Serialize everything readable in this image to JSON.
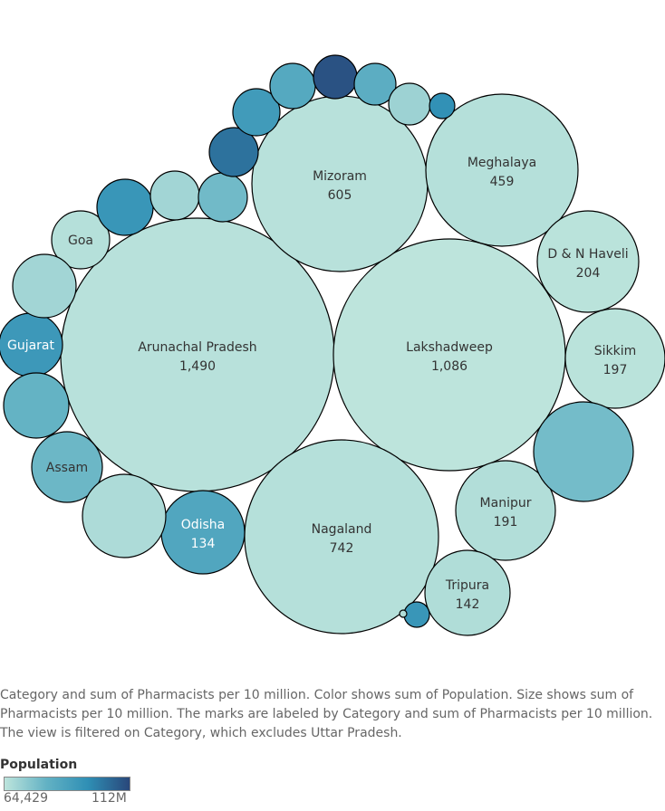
{
  "chart_data": {
    "type": "packed-bubble",
    "size_measure": "Pharmacists per 10 million",
    "color_measure": "Population",
    "color_range": {
      "min_label": "64,429",
      "max_label": "112M"
    },
    "color_stops": [
      "#bde4dc",
      "#63b2c4",
      "#2f8fb5",
      "#29477a"
    ],
    "bubbles": [
      {
        "category": "Arunachal Pradesh",
        "value": 1490,
        "value_label": "1,490",
        "population_norm": 0.02
      },
      {
        "category": "Lakshadweep",
        "value": 1086,
        "value_label": "1,086",
        "population_norm": 0.0
      },
      {
        "category": "Nagaland",
        "value": 742,
        "value_label": "742",
        "population_norm": 0.03
      },
      {
        "category": "Mizoram",
        "value": 605,
        "value_label": "605",
        "population_norm": 0.02
      },
      {
        "category": "Meghalaya",
        "value": 459,
        "value_label": "459",
        "population_norm": 0.03
      },
      {
        "category": "D & N Haveli",
        "value": 204,
        "value_label": "204",
        "population_norm": 0.01
      },
      {
        "category": "Sikkim",
        "value": 197,
        "value_label": "197",
        "population_norm": 0.01
      },
      {
        "category": "Manipur",
        "value": 191,
        "value_label": "191",
        "population_norm": 0.04
      },
      {
        "category": "Tripura",
        "value": 142,
        "value_label": "142",
        "population_norm": 0.05
      },
      {
        "category": "Odisha",
        "value": 134,
        "value_label": "134",
        "population_norm": 0.45
      },
      {
        "category": "Gujarat",
        "value": null,
        "value_label": "",
        "population_norm": 0.58
      },
      {
        "category": "Assam",
        "value": null,
        "value_label": "",
        "population_norm": 0.3
      },
      {
        "category": "Goa",
        "value": null,
        "value_label": "",
        "population_norm": 0.03
      },
      {
        "category": "",
        "value": null,
        "value_label": "",
        "population_norm": 0.27
      },
      {
        "category": "",
        "value": null,
        "value_label": "",
        "population_norm": 0.06
      },
      {
        "category": "",
        "value": null,
        "value_label": "",
        "population_norm": 0.33
      },
      {
        "category": "",
        "value": null,
        "value_label": "",
        "population_norm": 0.1
      },
      {
        "category": "",
        "value": null,
        "value_label": "",
        "population_norm": 0.6
      },
      {
        "category": "",
        "value": null,
        "value_label": "",
        "population_norm": 0.1
      },
      {
        "category": "",
        "value": null,
        "value_label": "",
        "population_norm": 0.28
      },
      {
        "category": "",
        "value": null,
        "value_label": "",
        "population_norm": 0.8
      },
      {
        "category": "",
        "value": null,
        "value_label": "",
        "population_norm": 0.55
      },
      {
        "category": "",
        "value": null,
        "value_label": "",
        "population_norm": 0.42
      },
      {
        "category": "",
        "value": null,
        "value_label": "",
        "population_norm": 0.95
      },
      {
        "category": "",
        "value": null,
        "value_label": "",
        "population_norm": 0.38
      },
      {
        "category": "",
        "value": null,
        "value_label": "",
        "population_norm": 0.12
      },
      {
        "category": "",
        "value": null,
        "value_label": "",
        "population_norm": 0.65
      },
      {
        "category": "",
        "value": null,
        "value_label": "",
        "population_norm": 0.6
      },
      {
        "category": "",
        "value": null,
        "value_label": "",
        "population_norm": 0.05
      }
    ]
  },
  "caption": "Category and sum of Pharmacists per 10 million.  Color shows sum of Population.  Size shows sum of Pharmacists per 10 million.  The marks are labeled by Category and sum of Pharmacists per 10 million.  The view is filtered on Category, which excludes Uttar Pradesh.",
  "legend": {
    "title": "Population",
    "min_label": "64,429",
    "max_label": "112M"
  }
}
